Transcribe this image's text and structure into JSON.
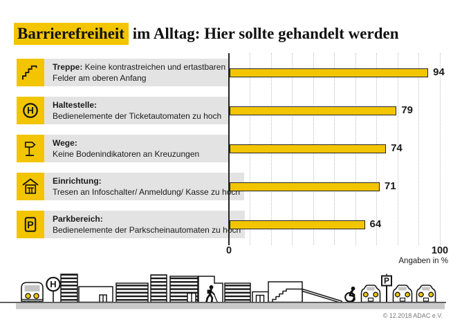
{
  "title": {
    "highlight": "Barrierefreiheit",
    "rest": " im Alltag: Hier sollte gehandelt werden"
  },
  "colors": {
    "yellow": "#F2C500",
    "label_box_gray": "#E3E3E3",
    "grid_gray": "#BDBDBD",
    "bar_border": "#222222",
    "text": "#1A1A1A",
    "ground_gray": "#C9C9C9",
    "street_line": "#3F3F3F"
  },
  "chart_data": {
    "type": "bar",
    "orientation": "horizontal",
    "title": "Barrierefreiheit im Alltag: Hier sollte gehandelt werden",
    "xlabel": "",
    "ylabel": "",
    "xlim": [
      0,
      100
    ],
    "x_tick_labels": [
      "0",
      "100"
    ],
    "grid": "vertical dotted lines every 10",
    "unit_note": "Angaben in %",
    "categories": [
      "Treppe",
      "Haltestelle",
      "Wege",
      "Einrichtung",
      "Parkbereich"
    ],
    "values": [
      94,
      79,
      74,
      71,
      64
    ],
    "rows": [
      {
        "icon": "stairs-icon",
        "strong": "Treppe:",
        "strong_inline": true,
        "lines": [
          "Keine kontrastreichen und ertastbaren",
          "Felder am oberen Anfang"
        ],
        "value": 94
      },
      {
        "icon": "bus-stop-icon",
        "strong": "Haltestelle:",
        "strong_inline": false,
        "lines": [
          "Bedienelemente der Ticketautomaten zu hoch"
        ],
        "value": 79
      },
      {
        "icon": "signpost-icon",
        "strong": "Wege:",
        "strong_inline": false,
        "lines": [
          "Keine Bodenindikatoren an Kreuzungen"
        ],
        "value": 74
      },
      {
        "icon": "building-icon",
        "strong": "Einrichtung:",
        "strong_inline": false,
        "lines": [
          "Tresen an Infoschalter/ Anmeldung/ Kasse zu hoch"
        ],
        "value": 71
      },
      {
        "icon": "parking-icon",
        "strong": "Parkbereich:",
        "strong_inline": false,
        "lines": [
          "Bedienelemente der Parkscheinautomaten zu hoch"
        ],
        "value": 64
      }
    ]
  },
  "axis": {
    "min_label": "0",
    "max_label": "100",
    "note": "Angaben in %"
  },
  "illustration": {
    "bus_stop_letter": "H",
    "parking_letter": "P"
  },
  "footer": {
    "copyright": "© 12.2018 ADAC e.V."
  }
}
